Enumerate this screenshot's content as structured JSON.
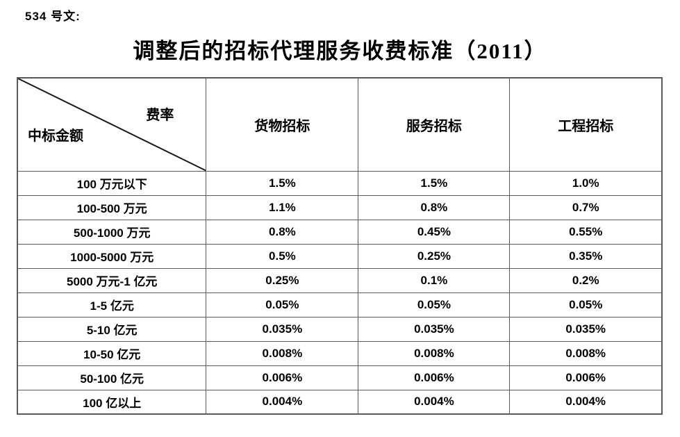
{
  "doc_number": "534 号文:",
  "title": "调整后的招标代理服务收费标准（2011）",
  "table": {
    "corner": {
      "top_right": "费率",
      "bottom_left": "中标金额"
    },
    "columns": [
      "货物招标",
      "服务招标",
      "工程招标"
    ],
    "rows": [
      {
        "label": "100 万元以下",
        "values": [
          "1.5%",
          "1.5%",
          "1.0%"
        ]
      },
      {
        "label": "100-500 万元",
        "values": [
          "1.1%",
          "0.8%",
          "0.7%"
        ]
      },
      {
        "label": "500-1000 万元",
        "values": [
          "0.8%",
          "0.45%",
          "0.55%"
        ]
      },
      {
        "label": "1000-5000 万元",
        "values": [
          "0.5%",
          "0.25%",
          "0.35%"
        ]
      },
      {
        "label": "5000 万元-1 亿元",
        "values": [
          "0.25%",
          "0.1%",
          "0.2%"
        ]
      },
      {
        "label": "1-5 亿元",
        "values": [
          "0.05%",
          "0.05%",
          "0.05%"
        ]
      },
      {
        "label": "5-10 亿元",
        "values": [
          "0.035%",
          "0.035%",
          "0.035%"
        ]
      },
      {
        "label": "10-50 亿元",
        "values": [
          "0.008%",
          "0.008%",
          "0.008%"
        ]
      },
      {
        "label": "50-100 亿元",
        "values": [
          "0.006%",
          "0.006%",
          "0.006%"
        ]
      },
      {
        "label": "100 亿以上",
        "values": [
          "0.004%",
          "0.004%",
          "0.004%"
        ]
      }
    ]
  },
  "colors": {
    "border": "#595959",
    "diagonal": "#1a1a1a",
    "text": "#000000",
    "background": "#ffffff"
  }
}
